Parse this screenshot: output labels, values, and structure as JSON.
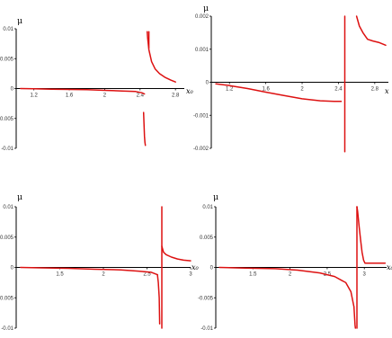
{
  "chart_data": [
    {
      "type": "line",
      "ylabel": "μ",
      "xlabel": "x₀",
      "xlim": [
        1.0,
        2.9
      ],
      "ylim": [
        -0.01,
        0.01
      ],
      "x_ticks": [
        "1.2",
        "1.6",
        "2",
        "2.4",
        "2.8"
      ],
      "y_ticks": [
        "0.01",
        "0.005",
        "0",
        "-0.005",
        "-0.01"
      ],
      "series": [
        {
          "x": [
            1.05,
            1.2,
            1.4,
            1.6,
            1.8,
            2.0,
            2.2,
            2.35,
            2.42,
            2.45
          ],
          "y": [
            0,
            -5e-05,
            -0.0001,
            -0.00015,
            -0.0002,
            -0.0003,
            -0.0004,
            -0.0005,
            -0.0007,
            -0.0009
          ]
        },
        {
          "x": [
            2.44,
            2.445,
            2.45,
            2.455,
            2.46
          ],
          "y": [
            -0.004,
            -0.006,
            -0.008,
            -0.009,
            -0.0095
          ]
        },
        {
          "x": [
            2.48,
            2.485,
            2.5,
            2.53,
            2.57,
            2.62,
            2.68,
            2.75,
            2.8
          ],
          "y": [
            0.0095,
            0.0085,
            0.0065,
            0.0045,
            0.0033,
            0.0025,
            0.0019,
            0.0014,
            0.0011
          ]
        },
        {
          "x": [
            2.5,
            2.5
          ],
          "y": [
            0.0068,
            0.0095
          ]
        }
      ]
    },
    {
      "type": "line",
      "ylabel": "μ",
      "xlabel": "x",
      "xlim": [
        1.0,
        2.95
      ],
      "ylim": [
        -0.002,
        0.002
      ],
      "x_ticks": [
        "1.2",
        "1.6",
        "2",
        "2.4",
        "2.8"
      ],
      "y_ticks": [
        "0.002",
        "0.001",
        "0",
        "-0.001",
        "-0.002"
      ],
      "series": [
        {
          "x": [
            1.05,
            1.2,
            1.4,
            1.6,
            1.8,
            2.0,
            2.2,
            2.35,
            2.43
          ],
          "y": [
            -5e-05,
            -0.0001,
            -0.00019,
            -0.0003,
            -0.0004,
            -0.0005,
            -0.00056,
            -0.00058,
            -0.00058
          ]
        },
        {
          "x": [
            2.47,
            2.47
          ],
          "y": [
            -0.0021,
            0.002
          ]
        },
        {
          "x": [
            2.6,
            2.63,
            2.67,
            2.72,
            2.78,
            2.85,
            2.92
          ],
          "y": [
            0.002,
            0.0017,
            0.0015,
            0.0013,
            0.00125,
            0.0012,
            0.00112
          ]
        }
      ]
    },
    {
      "type": "line",
      "ylabel": "μ",
      "xlabel": "x₀",
      "xlim": [
        1.0,
        3.0
      ],
      "ylim": [
        -0.01,
        0.01
      ],
      "x_ticks": [
        "1.5",
        "2",
        "2.5",
        "3"
      ],
      "y_ticks": [
        "0.01",
        "0.005",
        "0",
        "-0.005",
        "-0.01"
      ],
      "series": [
        {
          "x": [
            1.05,
            1.3,
            1.6,
            1.9,
            2.2,
            2.4,
            2.55,
            2.62
          ],
          "y": [
            0,
            -8e-05,
            -0.00015,
            -0.0003,
            -0.0004,
            -0.0006,
            -0.0008,
            -0.0012
          ]
        },
        {
          "x": [
            2.62,
            2.63,
            2.64,
            2.645
          ],
          "y": [
            -0.0012,
            -0.0025,
            -0.005,
            -0.0093
          ]
        },
        {
          "x": [
            2.67,
            2.67
          ],
          "y": [
            -0.01,
            0.01
          ]
        },
        {
          "x": [
            2.67,
            2.69,
            2.72,
            2.78,
            2.85,
            2.92,
            3.0
          ],
          "y": [
            0.0035,
            0.0025,
            0.0021,
            0.0017,
            0.0014,
            0.0012,
            0.0011
          ]
        }
      ]
    },
    {
      "type": "line",
      "ylabel": "μ",
      "xlabel": "x₀",
      "xlim": [
        1.0,
        3.3
      ],
      "ylim": [
        -0.01,
        0.01
      ],
      "x_ticks": [
        "1.5",
        "2",
        "2.5",
        "3"
      ],
      "y_ticks": [
        "0.01",
        "0.005",
        "0",
        "-0.005",
        "-0.01"
      ],
      "series": [
        {
          "x": [
            1.05,
            1.4,
            1.8,
            2.1,
            2.4,
            2.6,
            2.75,
            2.82,
            2.86
          ],
          "y": [
            0,
            -0.0001,
            -0.0002,
            -0.00045,
            -0.0009,
            -0.0015,
            -0.0025,
            -0.004,
            -0.0065
          ]
        },
        {
          "x": [
            2.86,
            2.87,
            2.875,
            2.88
          ],
          "y": [
            -0.0065,
            -0.0085,
            -0.0095,
            -0.01
          ]
        },
        {
          "x": [
            2.9,
            2.9
          ],
          "y": [
            -0.01,
            0.01
          ]
        },
        {
          "x": [
            2.9,
            2.91,
            2.93,
            2.95,
            2.97,
            2.99,
            3.01,
            3.03
          ],
          "y": [
            0.01,
            0.0092,
            0.0068,
            0.0045,
            0.0025,
            0.0012,
            0.0007,
            0.0007
          ]
        },
        {
          "x": [
            3.03,
            3.28
          ],
          "y": [
            0.0007,
            0.0007
          ]
        }
      ]
    }
  ]
}
